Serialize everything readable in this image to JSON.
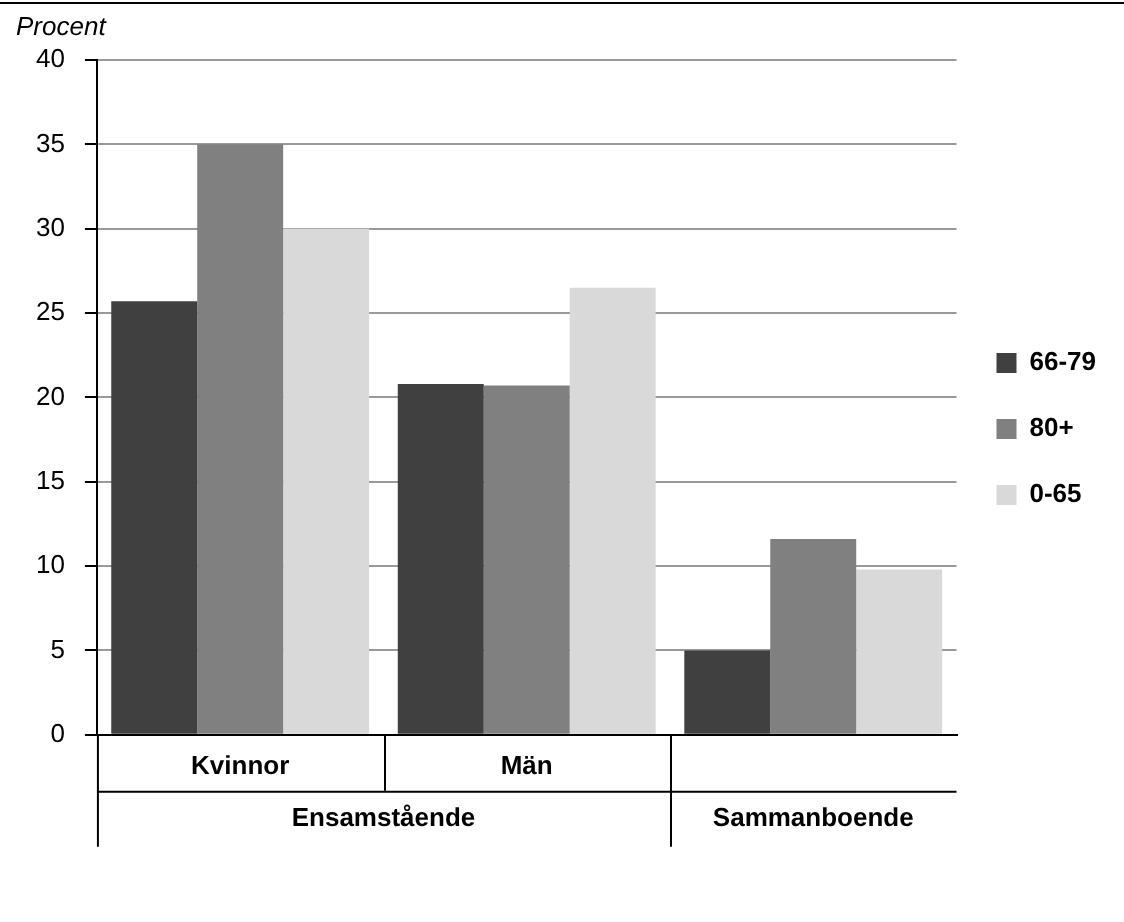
{
  "chart_data": {
    "type": "bar",
    "ylabel": "Procent",
    "categories": [
      "Kvinnor",
      "Män",
      null
    ],
    "series": [
      {
        "name": "66-79",
        "color": "#404040",
        "values": [
          25.7,
          20.8,
          5
        ]
      },
      {
        "name": "80+",
        "color": "#808080",
        "values": [
          35,
          20.7,
          11.6
        ]
      },
      {
        "name": "0-65",
        "color": "#d9d9d9",
        "values": [
          30,
          26.5,
          9.8
        ]
      }
    ],
    "ylim": [
      0,
      40
    ],
    "yticks": [
      0,
      5,
      10,
      15,
      20,
      25,
      30,
      35,
      40
    ],
    "grid": "y",
    "legend": "right",
    "annotations": [
      "Ensamstående",
      "Sammanboende"
    ]
  }
}
